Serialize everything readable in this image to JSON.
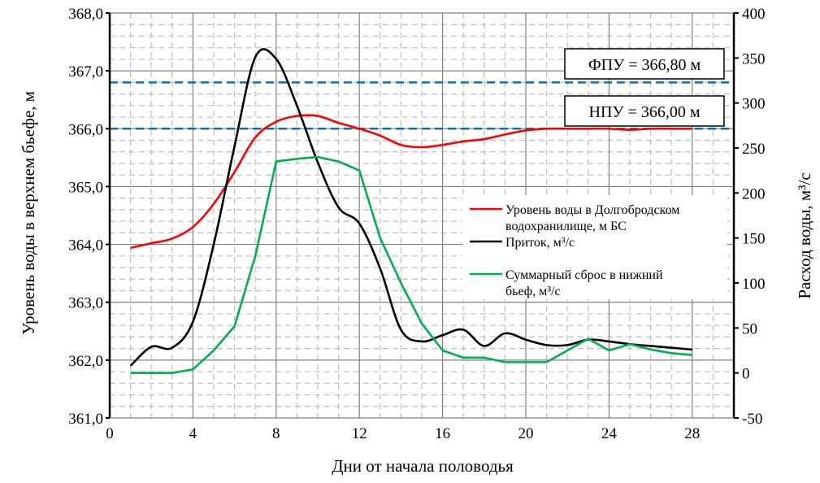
{
  "chart_data": {
    "type": "line",
    "xlabel": "Дни от начала половодья",
    "ylabel_left": "Уровень воды в верхнем бьефе, м",
    "ylabel_right": "Расход воды, м³/с",
    "xlim": [
      0,
      30
    ],
    "xticks": [
      0,
      4,
      8,
      12,
      16,
      20,
      24,
      28
    ],
    "ylim_left": [
      361,
      368
    ],
    "yticks_left": [
      "361,0",
      "362,0",
      "363,0",
      "364,0",
      "365,0",
      "366,0",
      "367,0",
      "368,0"
    ],
    "ylim_right": [
      -50,
      400
    ],
    "yticks_right": [
      "-50",
      "0",
      "50",
      "100",
      "150",
      "200",
      "250",
      "300",
      "350",
      "400"
    ],
    "grid": true,
    "reference_lines": [
      {
        "label": "ФПУ = 366,80 м",
        "value": 366.8,
        "color": "#0070C0"
      },
      {
        "label": "НПУ = 366,00 м",
        "value": 366.0,
        "color": "#0070C0"
      }
    ],
    "x": [
      1,
      2,
      3,
      4,
      5,
      6,
      7,
      8,
      9,
      10,
      11,
      12,
      13,
      14,
      15,
      16,
      17,
      18,
      19,
      20,
      21,
      22,
      23,
      24,
      25,
      26,
      27,
      28
    ],
    "series": [
      {
        "name": "Уровень воды в Долгобродском водохранилище, м БС",
        "axis": "left",
        "color": "#FF0000",
        "smooth": true,
        "values": [
          363.94,
          364.02,
          364.1,
          364.3,
          364.7,
          365.25,
          365.85,
          366.12,
          366.22,
          366.22,
          366.1,
          366.0,
          365.88,
          365.72,
          365.68,
          365.72,
          365.78,
          365.82,
          365.9,
          365.97,
          366.0,
          366.0,
          366.0,
          366.0,
          365.98,
          366.0,
          366.0,
          366.0
        ]
      },
      {
        "name": "Приток, м³/с",
        "axis": "right",
        "color": "#000000",
        "smooth": true,
        "values": [
          8,
          29,
          28,
          57,
          143,
          252,
          351,
          349,
          297,
          234,
          184,
          166,
          116,
          48,
          35,
          42,
          48,
          30,
          44,
          37,
          31,
          31,
          37,
          35,
          32,
          30,
          28,
          26
        ]
      },
      {
        "name": "Суммарный сброс в нижний бьеф, м³/с",
        "axis": "right",
        "color": "#00B050",
        "smooth": false,
        "values": [
          0,
          0,
          0,
          4,
          25,
          52,
          130,
          235,
          238,
          240,
          235,
          225,
          150,
          100,
          55,
          25,
          17,
          17,
          12,
          12,
          12,
          25,
          38,
          25,
          32,
          26,
          22,
          20
        ]
      }
    ],
    "legend_position": "center-right"
  }
}
